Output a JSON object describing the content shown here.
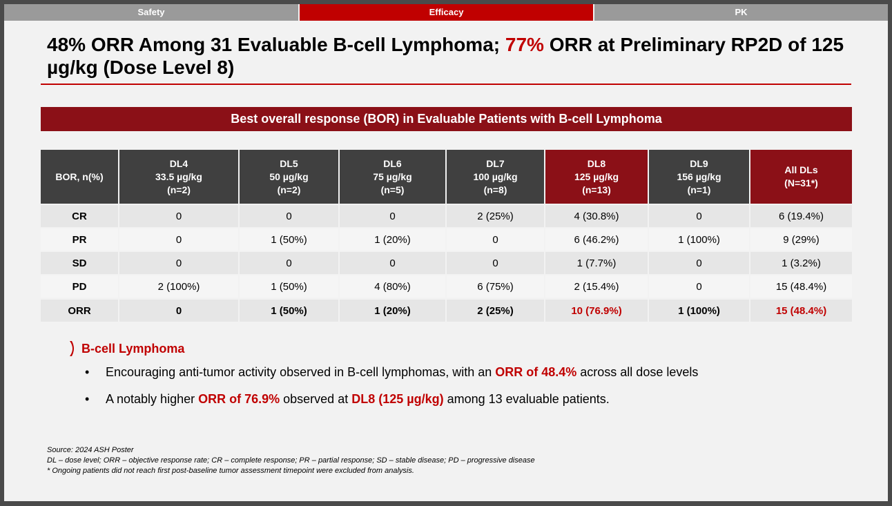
{
  "tabs": [
    {
      "label": "Safety",
      "active": false
    },
    {
      "label": "Efficacy",
      "active": true
    },
    {
      "label": "PK",
      "active": false
    }
  ],
  "title": {
    "part1": "48% ORR Among 31 Evaluable B-cell Lymphoma; ",
    "highlight": "77%",
    "part2": " ORR at Preliminary RP2D of 125 µg/kg (Dose Level 8)"
  },
  "banner": "Best overall response (BOR) in Evaluable Patients with B-cell Lymphoma",
  "table": {
    "row_header": "BOR, n(%)",
    "columns": [
      {
        "name": "DL4",
        "dose": "33.5 µg/kg",
        "n": "(n=2)"
      },
      {
        "name": "DL5",
        "dose": "50 µg/kg",
        "n": "(n=2)"
      },
      {
        "name": "DL6",
        "dose": "75 µg/kg",
        "n": "(n=5)"
      },
      {
        "name": "DL7",
        "dose": "100 µg/kg",
        "n": "(n=8)"
      },
      {
        "name": "DL8",
        "dose": "125 µg/kg",
        "n": "(n=13)"
      },
      {
        "name": "DL9",
        "dose": "156 µg/kg",
        "n": "(n=1)"
      },
      {
        "name": "All DLs",
        "dose": "",
        "n": "(N=31*)"
      }
    ],
    "rows": [
      {
        "label": "CR",
        "values": [
          "0",
          "0",
          "0",
          "2 (25%)",
          "4 (30.8%)",
          "0",
          "6 (19.4%)"
        ]
      },
      {
        "label": "PR",
        "values": [
          "0",
          "1 (50%)",
          "1 (20%)",
          "0",
          "6 (46.2%)",
          "1 (100%)",
          "9 (29%)"
        ]
      },
      {
        "label": "SD",
        "values": [
          "0",
          "0",
          "0",
          "0",
          "1 (7.7%)",
          "0",
          "1 (3.2%)"
        ]
      },
      {
        "label": "PD",
        "values": [
          "2 (100%)",
          "1 (50%)",
          "4 (80%)",
          "6 (75%)",
          "2 (15.4%)",
          "0",
          "15 (48.4%)"
        ]
      },
      {
        "label": "ORR",
        "values": [
          "0",
          "1 (50%)",
          "1 (20%)",
          "2 (25%)",
          "10 (76.9%)",
          "1 (100%)",
          "15 (48.4%)"
        ]
      }
    ]
  },
  "section": {
    "heading": "B-cell Lymphoma",
    "bullet_marker": "•",
    "bullet1": {
      "pre": "Encouraging anti-tumor activity observed in B-cell lymphomas, with an ",
      "hl": "ORR of 48.4%",
      "post": " across all dose levels"
    },
    "bullet2": {
      "pre": "A notably higher ",
      "hl1": "ORR of 76.9%",
      "mid": " observed at ",
      "hl2": "DL8 (125 µg/kg)",
      "post": " among 13 evaluable patients."
    }
  },
  "footnotes": [
    "Source: 2024 ASH Poster",
    "DL – dose level; ORR – objective response rate; CR – complete response; PR – partial response; SD – stable disease; PD – progressive disease",
    "* Ongoing patients did not reach first post-baseline tumor assessment timepoint were excluded from analysis."
  ],
  "colors": {
    "accent_red": "#c00000",
    "dark_red": "#8b1017",
    "header_gray": "#404040"
  }
}
